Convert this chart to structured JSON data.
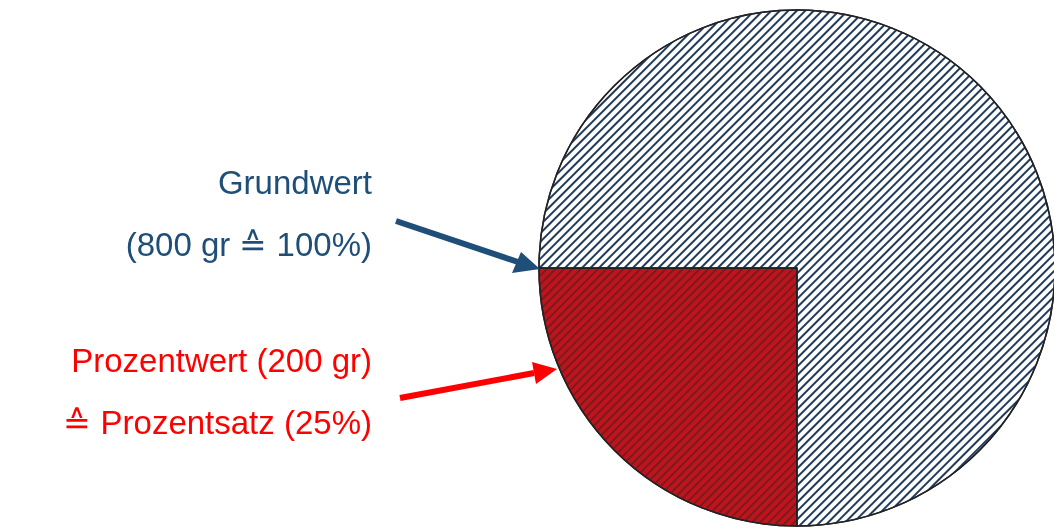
{
  "chart_data": {
    "type": "pie",
    "categories": [
      null,
      null
    ],
    "values": [
      25,
      75
    ],
    "colors": [
      "#c0141c",
      "#ffffff"
    ],
    "annotations": [
      "Grundwert\n(800 gr  ≙  100%)",
      "Prozentwert (200 gr)\n≙  Prozentsatz (25%)"
    ]
  }
}
